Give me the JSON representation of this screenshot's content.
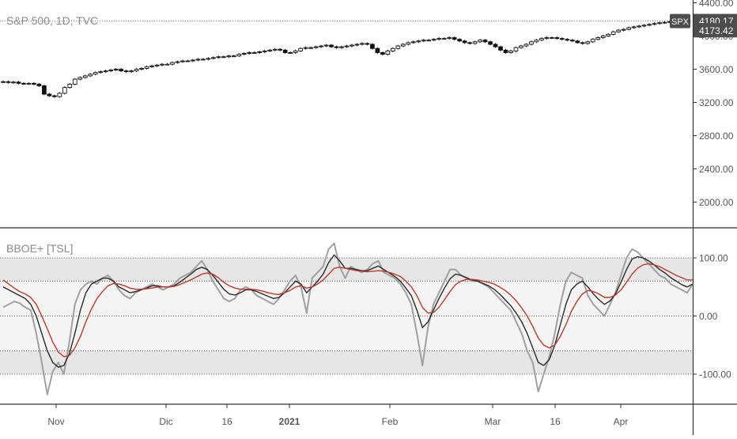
{
  "chart_data": [
    {
      "type": "candlestick",
      "title": "S&P 500, 1D, TVC",
      "symbol_badge": "SPX",
      "last_price": "4180.17",
      "last_close_label": "4173.42",
      "yticks": [
        "4400.00",
        "4000.00",
        "3600.00",
        "3200.00",
        "2800.00",
        "2400.00",
        "2000.00"
      ],
      "ylim": [
        1750,
        4450
      ],
      "xlabels": [
        "Nov",
        "Dic",
        "16",
        "2021",
        "Feb",
        "Mar",
        "16",
        "Apr"
      ],
      "close_series": [
        3450,
        3440,
        3445,
        3430,
        3425,
        3430,
        3420,
        3400,
        3300,
        3280,
        3270,
        3310,
        3380,
        3420,
        3480,
        3500,
        3520,
        3540,
        3560,
        3570,
        3580,
        3590,
        3600,
        3580,
        3570,
        3580,
        3600,
        3610,
        3630,
        3640,
        3650,
        3660,
        3660,
        3680,
        3690,
        3700,
        3700,
        3710,
        3720,
        3720,
        3730,
        3740,
        3750,
        3750,
        3760,
        3760,
        3780,
        3790,
        3800,
        3800,
        3810,
        3820,
        3830,
        3840,
        3830,
        3800,
        3800,
        3820,
        3850,
        3860,
        3860,
        3870,
        3880,
        3890,
        3870,
        3860,
        3870,
        3880,
        3890,
        3900,
        3910,
        3900,
        3850,
        3800,
        3780,
        3820,
        3850,
        3880,
        3900,
        3920,
        3930,
        3940,
        3950,
        3950,
        3960,
        3970,
        3970,
        3980,
        3960,
        3940,
        3920,
        3910,
        3930,
        3950,
        3930,
        3900,
        3870,
        3830,
        3800,
        3820,
        3860,
        3880,
        3900,
        3930,
        3950,
        3970,
        3980,
        3980,
        3970,
        3960,
        3950,
        3940,
        3920,
        3910,
        3930,
        3960,
        3980,
        4000,
        4020,
        4050,
        4070,
        4080,
        4100,
        4110,
        4120,
        4130,
        4140,
        4150,
        4160,
        4165,
        4173
      ]
    },
    {
      "type": "line",
      "title": "BBOE+ [TSL]",
      "yticks": [
        "100.00",
        "0.00",
        "-100.00"
      ],
      "ylim": [
        -148,
        148
      ],
      "levels": [
        100,
        60,
        0,
        -60,
        -100
      ],
      "series": [
        {
          "color": "#a0a0a0",
          "values": [
            15,
            20,
            25,
            22,
            15,
            10,
            -30,
            -80,
            -135,
            -95,
            -80,
            -100,
            -45,
            20,
            45,
            55,
            60,
            55,
            65,
            70,
            60,
            45,
            35,
            30,
            40,
            45,
            50,
            55,
            50,
            45,
            50,
            55,
            65,
            70,
            75,
            85,
            95,
            80,
            60,
            45,
            30,
            25,
            30,
            45,
            50,
            45,
            35,
            30,
            25,
            20,
            30,
            45,
            60,
            70,
            50,
            5,
            65,
            75,
            85,
            115,
            125,
            85,
            65,
            85,
            80,
            75,
            80,
            90,
            95,
            75,
            70,
            65,
            55,
            40,
            20,
            -30,
            -85,
            -20,
            20,
            40,
            60,
            80,
            80,
            70,
            65,
            60,
            60,
            55,
            50,
            40,
            30,
            20,
            10,
            -10,
            -30,
            -60,
            -80,
            -130,
            -100,
            -70,
            -30,
            20,
            60,
            75,
            70,
            65,
            35,
            20,
            10,
            0,
            20,
            40,
            70,
            100,
            115,
            110,
            100,
            90,
            80,
            70,
            65,
            55,
            50,
            45,
            40,
            55
          ]
        },
        {
          "color": "#2a2a2a",
          "values": [
            50,
            45,
            40,
            35,
            30,
            20,
            0,
            -30,
            -60,
            -80,
            -88,
            -85,
            -65,
            -30,
            10,
            40,
            55,
            60,
            65,
            65,
            60,
            50,
            45,
            40,
            42,
            45,
            48,
            52,
            52,
            50,
            50,
            52,
            58,
            65,
            72,
            80,
            84,
            80,
            70,
            58,
            46,
            38,
            36,
            40,
            45,
            45,
            42,
            38,
            34,
            30,
            32,
            40,
            50,
            60,
            55,
            40,
            50,
            60,
            72,
            92,
            105,
            95,
            82,
            82,
            80,
            78,
            78,
            82,
            86,
            80,
            74,
            68,
            60,
            48,
            35,
            10,
            -20,
            -10,
            10,
            30,
            48,
            64,
            72,
            70,
            66,
            62,
            60,
            56,
            52,
            46,
            38,
            28,
            18,
            5,
            -10,
            -30,
            -55,
            -80,
            -85,
            -75,
            -50,
            -15,
            20,
            45,
            55,
            60,
            50,
            38,
            28,
            20,
            26,
            38,
            58,
            80,
            98,
            102,
            100,
            95,
            88,
            80,
            74,
            66,
            60,
            54,
            50,
            55
          ]
        },
        {
          "color": "#c0392b",
          "values": [
            62,
            55,
            48,
            42,
            38,
            32,
            20,
            0,
            -22,
            -45,
            -62,
            -70,
            -68,
            -55,
            -35,
            -10,
            12,
            30,
            42,
            52,
            56,
            55,
            52,
            48,
            46,
            46,
            47,
            48,
            50,
            50,
            50,
            51,
            54,
            58,
            62,
            67,
            72,
            74,
            72,
            66,
            58,
            52,
            48,
            46,
            46,
            46,
            45,
            43,
            40,
            38,
            37,
            40,
            44,
            50,
            52,
            48,
            50,
            55,
            62,
            72,
            82,
            84,
            82,
            80,
            78,
            77,
            76,
            77,
            78,
            77,
            75,
            72,
            68,
            60,
            50,
            35,
            15,
            5,
            6,
            15,
            28,
            42,
            54,
            60,
            63,
            63,
            62,
            60,
            58,
            55,
            50,
            44,
            36,
            26,
            14,
            0,
            -18,
            -38,
            -50,
            -55,
            -50,
            -35,
            -15,
            8,
            25,
            38,
            44,
            42,
            38,
            32,
            32,
            36,
            45,
            58,
            72,
            82,
            88,
            90,
            88,
            85,
            80,
            75,
            70,
            66,
            62,
            62
          ]
        }
      ]
    }
  ]
}
